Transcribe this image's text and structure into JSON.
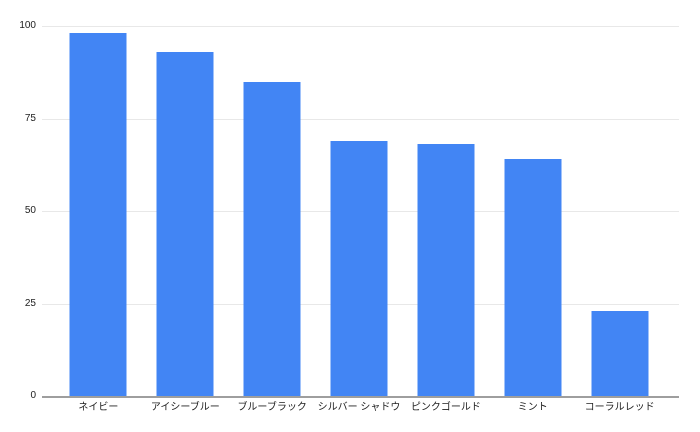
{
  "chart_data": {
    "type": "bar",
    "categories": [
      "ネイビー",
      "アイシーブルー",
      "ブルーブラック",
      "シルバー シャドウ",
      "ピンクゴールド",
      "ミント",
      "コーラルレッド"
    ],
    "values": [
      98,
      93,
      85,
      69,
      68,
      64,
      23
    ],
    "title": "",
    "xlabel": "",
    "ylabel": "",
    "ylim": [
      0,
      100
    ],
    "yticks": [
      0,
      25,
      50,
      75,
      100
    ],
    "grid": true,
    "legend": "none",
    "bar_color": "#4285f4",
    "gridline_color": "#e8e8e8",
    "axis_line_color": "#9e9e9e",
    "label_color": "#212121",
    "background": "#ffffff"
  }
}
